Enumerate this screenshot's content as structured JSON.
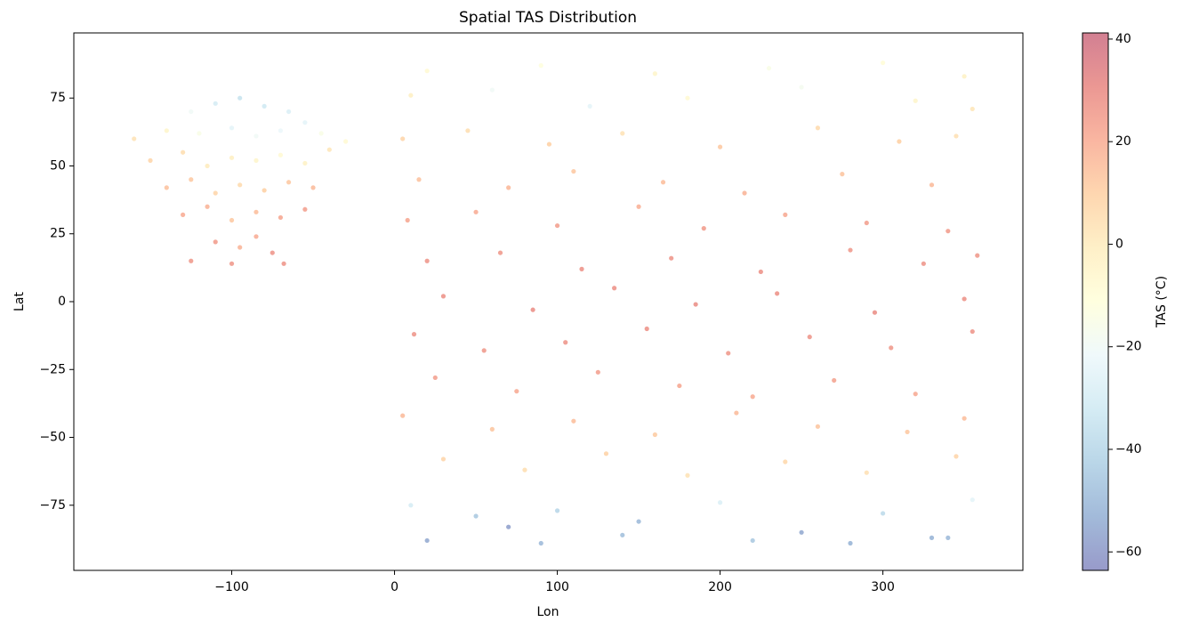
{
  "chart_data": {
    "type": "scatter",
    "title": "Spatial TAS Distribution",
    "xlabel": "Lon",
    "ylabel": "Lat",
    "colorbar_label": "TAS (°C)",
    "xlim": [
      -197,
      386
    ],
    "ylim": [
      -99,
      99
    ],
    "clim": [
      -63.6,
      41.2
    ],
    "xticks": [
      {
        "value": -100,
        "label": "−100"
      },
      0,
      100,
      200,
      300
    ],
    "yticks": [
      {
        "value": -75,
        "label": "−75"
      },
      {
        "value": -50,
        "label": "−50"
      },
      {
        "value": -25,
        "label": "−25"
      },
      0,
      25,
      50,
      75
    ],
    "cticks": [
      {
        "value": -60,
        "label": "−60"
      },
      {
        "value": -40,
        "label": "−40"
      },
      {
        "value": -20,
        "label": "−20"
      },
      0,
      20,
      40
    ],
    "colormap": [
      "#313695",
      "#4575b4",
      "#74add1",
      "#abd9e9",
      "#e0f3f8",
      "#ffffbf",
      "#fee090",
      "#fdae61",
      "#f46d43",
      "#d73027",
      "#a50026"
    ],
    "alpha": 0.5,
    "x": [
      20,
      90,
      160,
      230,
      300,
      350,
      10,
      60,
      120,
      180,
      250,
      320,
      355,
      5,
      45,
      95,
      140,
      200,
      260,
      310,
      345,
      15,
      70,
      110,
      165,
      215,
      275,
      330,
      8,
      50,
      100,
      150,
      190,
      240,
      290,
      340,
      20,
      65,
      115,
      170,
      225,
      280,
      325,
      358,
      30,
      85,
      135,
      185,
      235,
      295,
      350,
      12,
      55,
      105,
      155,
      205,
      255,
      305,
      355,
      25,
      75,
      125,
      175,
      220,
      270,
      320,
      5,
      60,
      110,
      160,
      210,
      260,
      315,
      350,
      30,
      80,
      130,
      180,
      240,
      290,
      345,
      10,
      50,
      70,
      100,
      150,
      200,
      250,
      300,
      330,
      355,
      20,
      90,
      140,
      220,
      280,
      340,
      -110,
      -95,
      -80,
      -65,
      -125,
      -55,
      -160,
      -140,
      -120,
      -100,
      -85,
      -70,
      -45,
      -30,
      -150,
      -130,
      -115,
      -100,
      -85,
      -70,
      -55,
      -40,
      -140,
      -125,
      -110,
      -95,
      -80,
      -65,
      -50,
      -130,
      -115,
      -100,
      -85,
      -70,
      -55,
      -125,
      -110,
      -95,
      -85,
      -75,
      -68,
      -100
    ],
    "y": [
      85,
      87,
      84,
      86,
      88,
      83,
      76,
      78,
      72,
      75,
      79,
      74,
      71,
      60,
      63,
      58,
      62,
      57,
      64,
      59,
      61,
      45,
      42,
      48,
      44,
      40,
      47,
      43,
      30,
      33,
      28,
      35,
      27,
      32,
      29,
      26,
      15,
      18,
      12,
      16,
      11,
      19,
      14,
      17,
      2,
      -3,
      5,
      -1,
      3,
      -4,
      1,
      -12,
      -18,
      -15,
      -10,
      -19,
      -13,
      -17,
      -11,
      -28,
      -33,
      -26,
      -31,
      -35,
      -29,
      -34,
      -42,
      -47,
      -44,
      -49,
      -41,
      -46,
      -48,
      -43,
      -58,
      -62,
      -56,
      -64,
      -59,
      -63,
      -57,
      -75,
      -79,
      -83,
      -77,
      -81,
      -74,
      -85,
      -78,
      -87,
      -73,
      -88,
      -89,
      -86,
      -88,
      -89,
      -87,
      73,
      75,
      72,
      70,
      70,
      66,
      60,
      63,
      62,
      64,
      61,
      63,
      62,
      59,
      52,
      55,
      50,
      53,
      52,
      54,
      51,
      56,
      42,
      45,
      40,
      43,
      41,
      44,
      42,
      32,
      35,
      30,
      33,
      31,
      34,
      15,
      22,
      20,
      24,
      18,
      14,
      14
    ],
    "values": [
      -8,
      -12,
      -5,
      -15,
      -10,
      -3,
      -2,
      -20,
      -25,
      -8,
      -18,
      -5,
      2,
      8,
      5,
      10,
      3,
      12,
      6,
      10,
      4,
      14,
      17,
      12,
      15,
      18,
      13,
      16,
      22,
      20,
      24,
      19,
      25,
      21,
      24,
      25,
      27,
      26,
      28,
      27,
      28,
      26,
      27,
      26,
      28,
      29,
      28,
      29,
      28,
      29,
      28,
      27,
      26,
      27,
      28,
      26,
      27,
      26,
      27,
      24,
      21,
      24,
      22,
      20,
      23,
      21,
      16,
      13,
      15,
      11,
      16,
      13,
      12,
      15,
      8,
      5,
      9,
      3,
      7,
      4,
      8,
      -30,
      -45,
      -58,
      -40,
      -50,
      -28,
      -55,
      -38,
      -52,
      -25,
      -55,
      -50,
      -48,
      -45,
      -52,
      -50,
      -30,
      -35,
      -32,
      -28,
      -20,
      -25,
      3,
      -5,
      -15,
      -25,
      -20,
      -22,
      -15,
      -8,
      8,
      5,
      0,
      -2,
      -5,
      -8,
      -3,
      2,
      14,
      12,
      8,
      6,
      10,
      12,
      16,
      20,
      18,
      12,
      15,
      22,
      24,
      26,
      25,
      18,
      20,
      27,
      27,
      26
    ]
  }
}
